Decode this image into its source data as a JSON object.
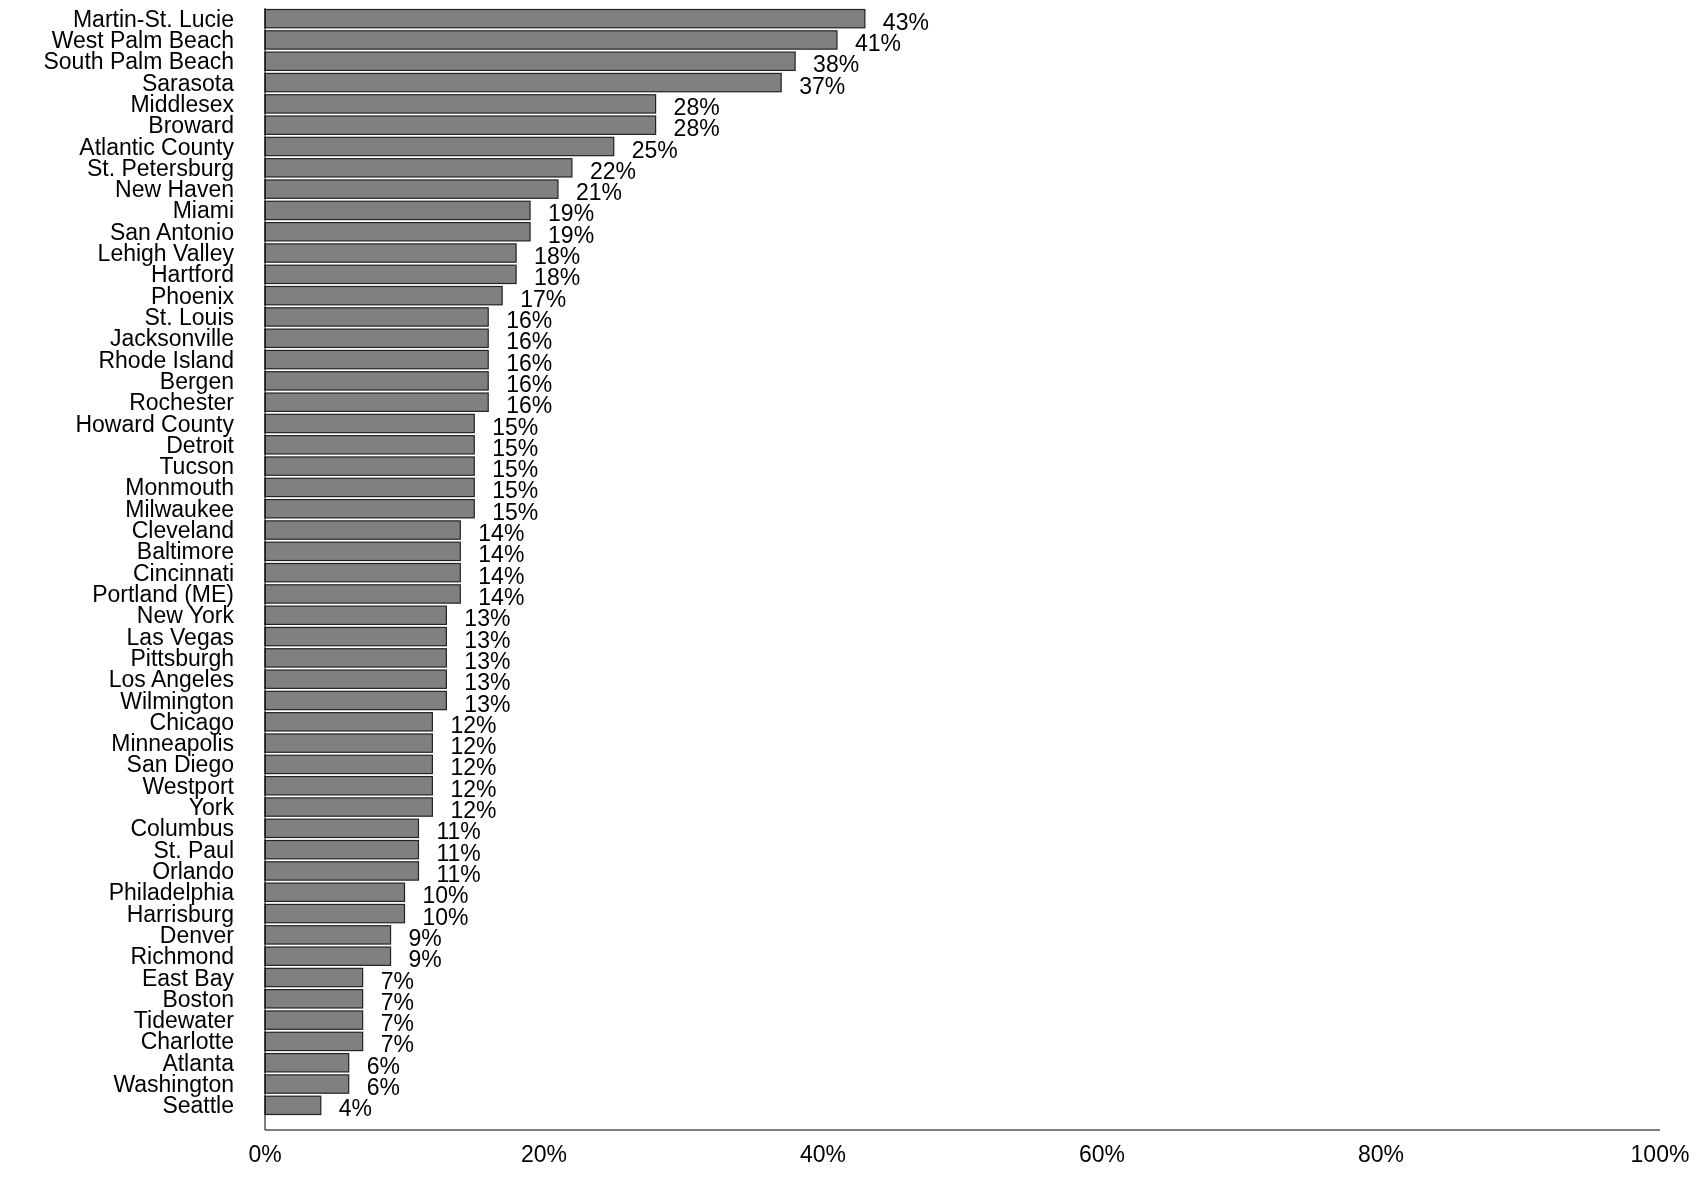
{
  "chart_data": {
    "type": "bar",
    "orientation": "horizontal",
    "categories": [
      "Martin-St. Lucie",
      "West Palm Beach",
      "South Palm Beach",
      "Sarasota",
      "Middlesex",
      "Broward",
      "Atlantic County",
      "St. Petersburg",
      "New Haven",
      "Miami",
      "San Antonio",
      "Lehigh Valley",
      "Hartford",
      "Phoenix",
      "St. Louis",
      "Jacksonville",
      "Rhode Island",
      "Bergen",
      "Rochester",
      "Howard County",
      "Detroit",
      "Tucson",
      "Monmouth",
      "Milwaukee",
      "Cleveland",
      "Baltimore",
      "Cincinnati",
      "Portland (ME)",
      "New York",
      "Las Vegas",
      "Pittsburgh",
      "Los Angeles",
      "Wilmington",
      "Chicago",
      "Minneapolis",
      "San Diego",
      "Westport",
      "York",
      "Columbus",
      "St. Paul",
      "Orlando",
      "Philadelphia",
      "Harrisburg",
      "Denver",
      "Richmond",
      "East Bay",
      "Boston",
      "Tidewater",
      "Charlotte",
      "Atlanta",
      "Washington",
      "Seattle"
    ],
    "values": [
      43,
      41,
      38,
      37,
      28,
      28,
      25,
      22,
      21,
      19,
      19,
      18,
      18,
      17,
      16,
      16,
      16,
      16,
      16,
      15,
      15,
      15,
      15,
      15,
      14,
      14,
      14,
      14,
      13,
      13,
      13,
      13,
      13,
      12,
      12,
      12,
      12,
      12,
      11,
      11,
      11,
      10,
      10,
      9,
      9,
      7,
      7,
      7,
      7,
      6,
      6,
      4
    ],
    "value_labels": [
      "43%",
      "41%",
      "38%",
      "37%",
      "28%",
      "28%",
      "25%",
      "22%",
      "21%",
      "19%",
      "19%",
      "18%",
      "18%",
      "17%",
      "16%",
      "16%",
      "16%",
      "16%",
      "16%",
      "15%",
      "15%",
      "15%",
      "15%",
      "15%",
      "14%",
      "14%",
      "14%",
      "14%",
      "13%",
      "13%",
      "13%",
      "13%",
      "13%",
      "12%",
      "12%",
      "12%",
      "12%",
      "12%",
      "11%",
      "11%",
      "11%",
      "10%",
      "10%",
      "9%",
      "9%",
      "7%",
      "7%",
      "7%",
      "7%",
      "6%",
      "6%",
      "4%"
    ],
    "color": "#808080",
    "xlim": [
      0,
      100
    ],
    "xticks": [
      {
        "value": 0,
        "label": "0%"
      },
      {
        "value": 20,
        "label": "20%"
      },
      {
        "value": 40,
        "label": "40%"
      },
      {
        "value": 60,
        "label": "60%"
      },
      {
        "value": 80,
        "label": "80%"
      },
      {
        "value": 100,
        "label": "100%"
      }
    ]
  }
}
